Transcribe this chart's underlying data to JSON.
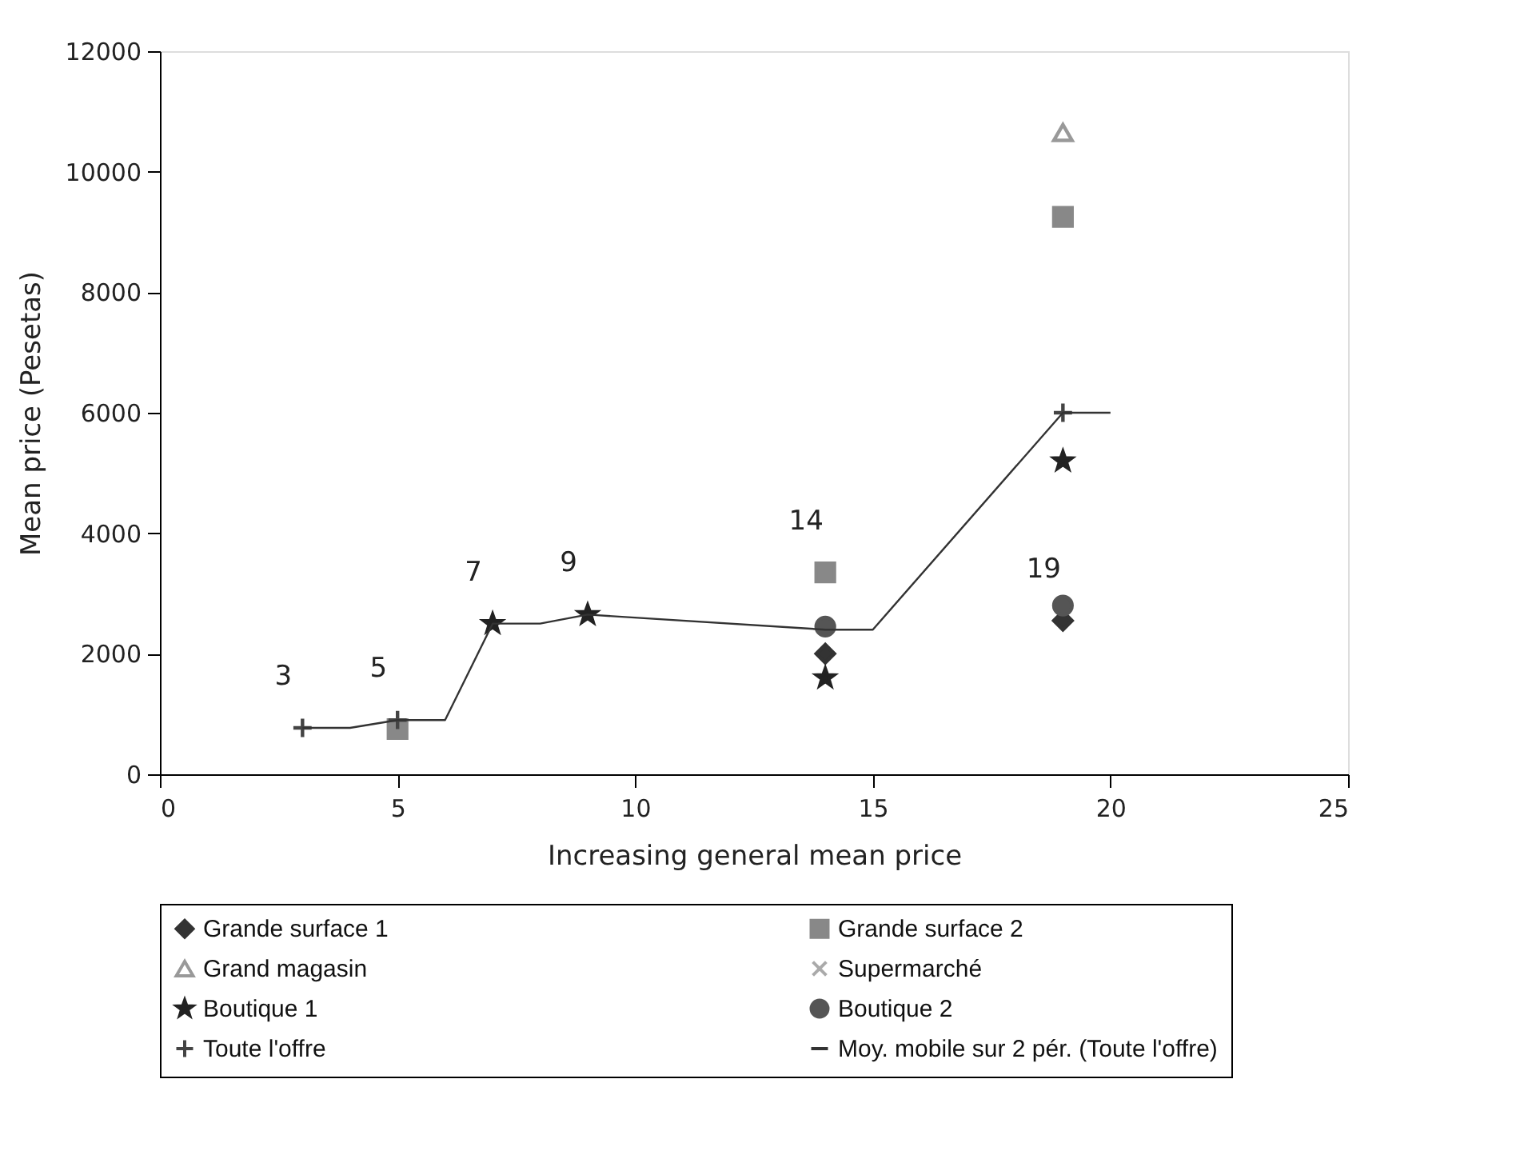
{
  "chart_data": {
    "type": "scatter",
    "xlabel": "Increasing general mean price",
    "ylabel": "Mean price (Pesetas)",
    "xlim": [
      0,
      25
    ],
    "xticks": [
      0,
      5,
      10,
      15,
      20,
      25
    ],
    "ylim": [
      0,
      12000
    ],
    "yticks": [
      0,
      2000,
      4000,
      6000,
      8000,
      10000,
      12000
    ],
    "grid": false,
    "legend": "bottom",
    "series": [
      {
        "name": "Grande surface 1",
        "color": "#333333",
        "marker": "diamond",
        "x": [
          14,
          19
        ],
        "values": [
          2000,
          2550
        ]
      },
      {
        "name": "Grande surface 2",
        "color": "#888888",
        "marker": "square",
        "x": [
          5,
          14,
          19
        ],
        "values": [
          750,
          3350,
          9250
        ]
      },
      {
        "name": "Grand magasin",
        "color": "#ffffff",
        "marker": "triangle",
        "x": [
          19
        ],
        "values": [
          10650
        ]
      },
      {
        "name": "Supermarché",
        "color": "#aaaaaa",
        "marker": "x"
      },
      {
        "name": "Boutique 1",
        "color": "#222222",
        "marker": "star",
        "x": [
          7,
          9,
          14,
          19
        ],
        "values": [
          2500,
          2650,
          1600,
          5200
        ]
      },
      {
        "name": "Boutique 2",
        "color": "#555555",
        "marker": "circle",
        "x": [
          14,
          19
        ],
        "values": [
          2450,
          2800
        ]
      },
      {
        "name": "Toute l'offre",
        "color": "#444444",
        "marker": "cross",
        "x": [
          3,
          5,
          19
        ],
        "values": [
          770,
          900,
          6000
        ]
      },
      {
        "name": "Moy. mobile sur 2 pér. (Toute l'offre)",
        "type": "line",
        "color": "#333333",
        "marker": "none",
        "x": [
          3,
          4,
          5,
          6,
          7,
          8,
          9,
          14,
          15,
          19,
          20
        ],
        "values": [
          770,
          770,
          900,
          900,
          2500,
          2500,
          2650,
          2400,
          2400,
          6000,
          6000
        ]
      }
    ],
    "annotations": [
      {
        "text": "3",
        "x": 3,
        "y": 770
      },
      {
        "text": "5",
        "x": 5,
        "y": 900
      },
      {
        "text": "7",
        "x": 7,
        "y": 2500
      },
      {
        "text": "9",
        "x": 9,
        "y": 2650
      },
      {
        "text": "14",
        "x": 14,
        "y": 3350
      },
      {
        "text": "19",
        "x": 19,
        "y": 2550
      }
    ]
  }
}
